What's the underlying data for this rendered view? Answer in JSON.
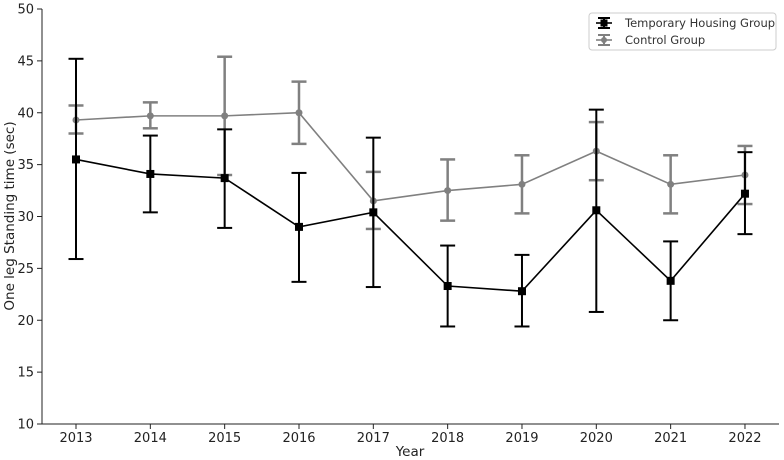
{
  "chart_data": {
    "type": "line",
    "title": "",
    "xlabel": "Year",
    "ylabel": "One leg Standing time (sec)",
    "categories": [
      "2013",
      "2014",
      "2015",
      "2016",
      "2017",
      "2018",
      "2019",
      "2020",
      "2021",
      "2022"
    ],
    "ylim": [
      10,
      50
    ],
    "yticks": [
      10,
      15,
      20,
      25,
      30,
      35,
      40,
      45,
      50
    ],
    "grid": false,
    "legend_position": "top-right",
    "series": [
      {
        "name": "Temporary Housing Group",
        "color": "#000000",
        "marker": "square",
        "values": [
          35.5,
          34.1,
          33.7,
          29.0,
          30.4,
          23.3,
          22.8,
          30.6,
          23.8,
          32.2
        ],
        "error_low": [
          25.9,
          30.4,
          28.9,
          23.7,
          23.2,
          19.4,
          19.4,
          20.8,
          20.0,
          28.3
        ],
        "error_high": [
          45.2,
          37.8,
          38.4,
          34.2,
          37.6,
          27.2,
          26.3,
          40.3,
          27.6,
          36.2
        ]
      },
      {
        "name": "Control Group",
        "color": "#808080",
        "marker": "circle",
        "values": [
          39.3,
          39.7,
          39.7,
          40.0,
          31.5,
          32.5,
          33.1,
          36.3,
          33.1,
          34.0
        ],
        "error_low": [
          38.0,
          38.5,
          34.0,
          37.0,
          28.8,
          29.6,
          30.3,
          33.5,
          30.3,
          31.2
        ],
        "error_high": [
          40.7,
          41.0,
          45.4,
          43.0,
          34.3,
          35.5,
          35.9,
          39.1,
          35.9,
          36.8
        ]
      }
    ]
  }
}
